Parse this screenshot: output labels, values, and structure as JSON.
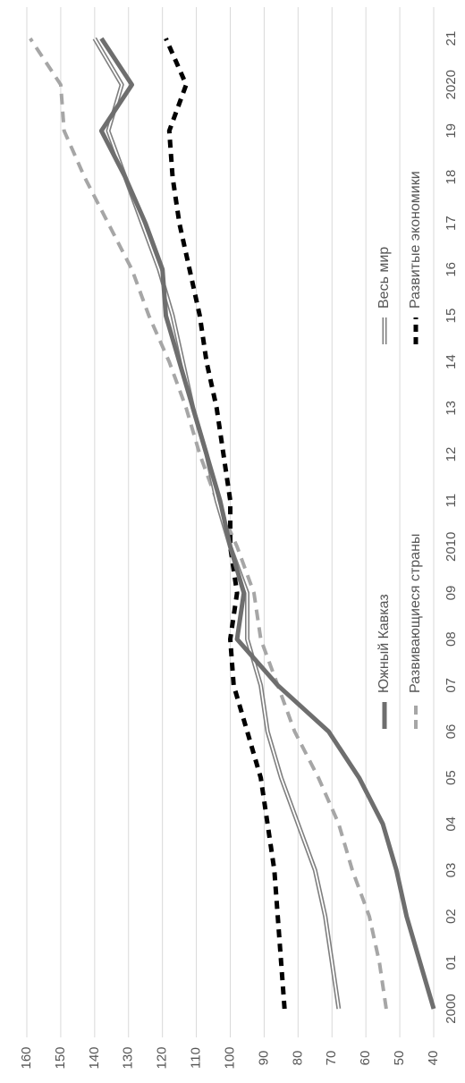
{
  "chart_data": {
    "type": "line",
    "orientation": "rotated-90-clockwise",
    "x": [
      "2000",
      "01",
      "02",
      "03",
      "04",
      "05",
      "06",
      "07",
      "08",
      "09",
      "2010",
      "11",
      "12",
      "13",
      "14",
      "15",
      "16",
      "17",
      "18",
      "19",
      "2020",
      "21"
    ],
    "ylim": [
      40,
      160
    ],
    "yticks": [
      40,
      50,
      60,
      70,
      80,
      90,
      100,
      110,
      120,
      130,
      140,
      150,
      160
    ],
    "grid": true,
    "legend_position": "inside",
    "series": [
      {
        "name": "Южный Кавказ",
        "color": "#6e6e6e",
        "style": "solid",
        "values": [
          40,
          44,
          48,
          51,
          55,
          62,
          71,
          86,
          98,
          96,
          100,
          103,
          107,
          111,
          115,
          119,
          120,
          125,
          131,
          138,
          129,
          138
        ]
      },
      {
        "name": "Весь мир",
        "color": "#7f7f7f",
        "style": "double",
        "values": [
          68,
          70,
          72,
          75,
          80,
          85,
          89,
          91,
          95,
          95,
          100,
          104,
          107,
          111,
          114,
          117,
          121,
          126,
          131,
          136,
          132,
          140
        ]
      },
      {
        "name": "Развивающиеся страны",
        "color": "#a6a6a6",
        "style": "dashed",
        "values": [
          54,
          56,
          59,
          64,
          68,
          74,
          81,
          86,
          91,
          93,
          98,
          104,
          109,
          113,
          118,
          124,
          129,
          136,
          143,
          149,
          150,
          159
        ]
      },
      {
        "name": "Развитые экономики",
        "color": "#000000",
        "style": "dotted",
        "values": [
          84,
          85,
          86,
          87,
          89,
          91,
          95,
          99,
          100,
          98,
          100,
          100,
          102,
          104,
          107,
          109,
          112,
          115,
          117,
          118,
          113,
          119
        ]
      }
    ]
  }
}
